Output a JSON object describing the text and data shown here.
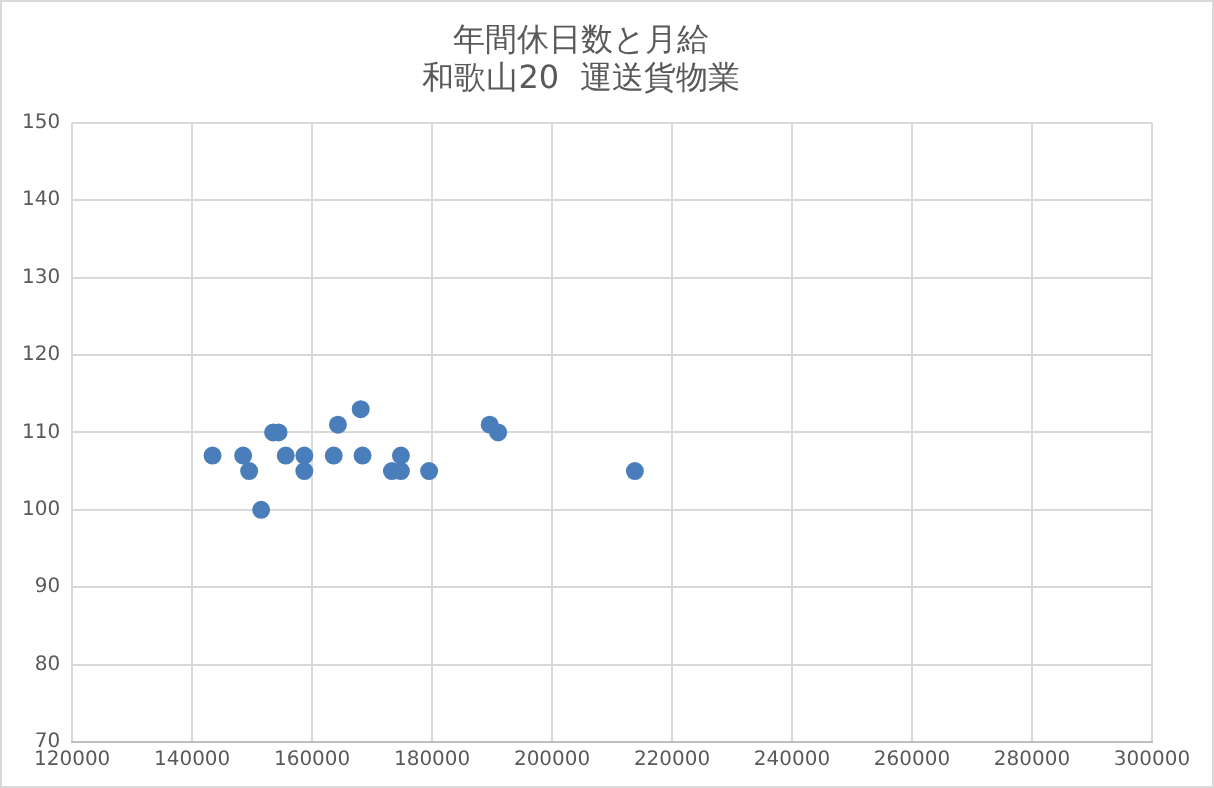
{
  "chart_data": {
    "type": "scatter",
    "title": [
      "年間休日数と月給",
      "和歌山20  運送貨物業"
    ],
    "x": [
      143400,
      148500,
      149500,
      151500,
      153500,
      154400,
      155600,
      158700,
      158700,
      163600,
      164300,
      168100,
      168400,
      173300,
      174800,
      174800,
      179500,
      189600,
      191000,
      213800
    ],
    "values": [
      107,
      107,
      105,
      100,
      110,
      110,
      107,
      107,
      105,
      107,
      111,
      113,
      107,
      105,
      105,
      107,
      105,
      111,
      110,
      105
    ],
    "color": "#4a7ebb",
    "marker": "circle",
    "xlim": [
      120000,
      300000
    ],
    "xticks": [
      120000,
      140000,
      160000,
      180000,
      200000,
      220000,
      240000,
      260000,
      280000,
      300000
    ],
    "ylim": [
      70,
      150
    ],
    "yticks": [
      70,
      80,
      90,
      100,
      110,
      120,
      130,
      140,
      150
    ],
    "grid": true,
    "legend": false
  }
}
